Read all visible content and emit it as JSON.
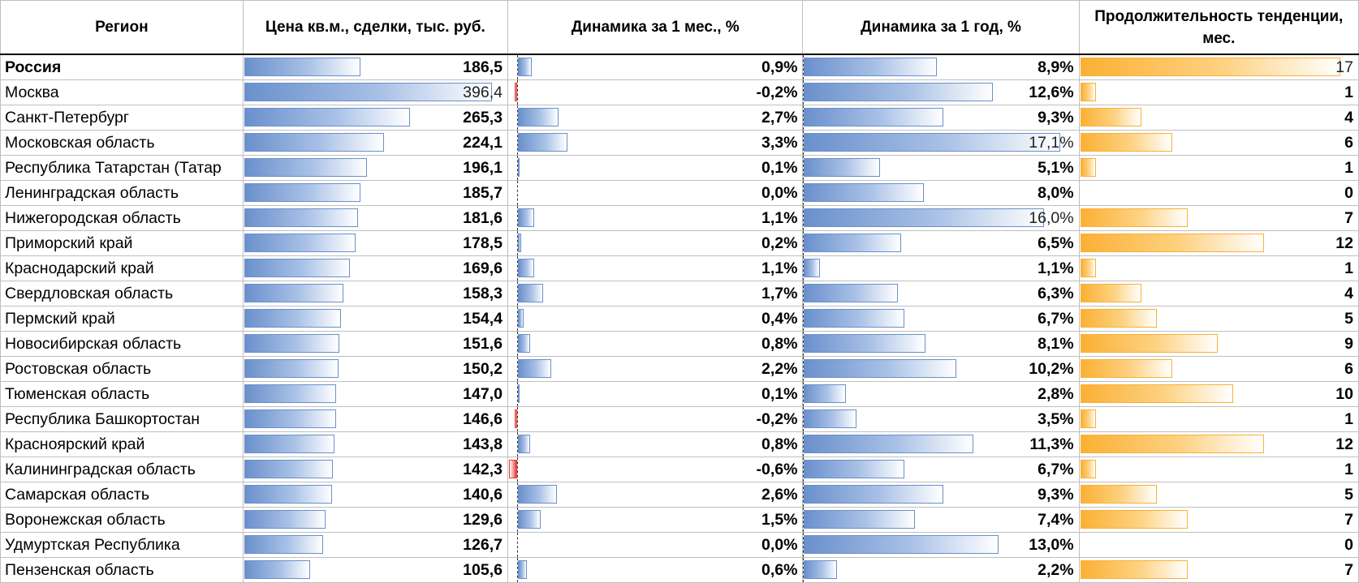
{
  "table": {
    "headers": {
      "region": "Регион",
      "price": "Цена кв.м., сделки, тыс. руб.",
      "month": "Динамика за 1 мес., %",
      "year": "Динамика за 1 год, %",
      "duration": "Продолжительность тенденции, мес."
    },
    "colors": {
      "bar_blue": "#6a90cc",
      "bar_orange": "#fbb034",
      "bar_red": "#e83a3a"
    },
    "rows": [
      {
        "region": "Россия",
        "price": "186,5",
        "month": "0,9%",
        "year": "8,9%",
        "duration": "17",
        "price_v": 186.5,
        "month_v": 0.9,
        "year_v": 8.9,
        "duration_v": 17
      },
      {
        "region": "Москва",
        "price": "396,4",
        "month": "-0,2%",
        "year": "12,6%",
        "duration": "1",
        "price_v": 396.4,
        "month_v": -0.2,
        "year_v": 12.6,
        "duration_v": 1
      },
      {
        "region": "Санкт-Петербург",
        "price": "265,3",
        "month": "2,7%",
        "year": "9,3%",
        "duration": "4",
        "price_v": 265.3,
        "month_v": 2.7,
        "year_v": 9.3,
        "duration_v": 4
      },
      {
        "region": "Московская область",
        "price": "224,1",
        "month": "3,3%",
        "year": "17,1%",
        "duration": "6",
        "price_v": 224.1,
        "month_v": 3.3,
        "year_v": 17.1,
        "duration_v": 6
      },
      {
        "region": "Республика Татарстан (Татар",
        "price": "196,1",
        "month": "0,1%",
        "year": "5,1%",
        "duration": "1",
        "price_v": 196.1,
        "month_v": 0.1,
        "year_v": 5.1,
        "duration_v": 1
      },
      {
        "region": "Ленинградская область",
        "price": "185,7",
        "month": "0,0%",
        "year": "8,0%",
        "duration": "0",
        "price_v": 185.7,
        "month_v": 0.0,
        "year_v": 8.0,
        "duration_v": 0
      },
      {
        "region": "Нижегородская область",
        "price": "181,6",
        "month": "1,1%",
        "year": "16,0%",
        "duration": "7",
        "price_v": 181.6,
        "month_v": 1.1,
        "year_v": 16.0,
        "duration_v": 7
      },
      {
        "region": "Приморский край",
        "price": "178,5",
        "month": "0,2%",
        "year": "6,5%",
        "duration": "12",
        "price_v": 178.5,
        "month_v": 0.2,
        "year_v": 6.5,
        "duration_v": 12
      },
      {
        "region": "Краснодарский край",
        "price": "169,6",
        "month": "1,1%",
        "year": "1,1%",
        "duration": "1",
        "price_v": 169.6,
        "month_v": 1.1,
        "year_v": 1.1,
        "duration_v": 1
      },
      {
        "region": "Свердловская область",
        "price": "158,3",
        "month": "1,7%",
        "year": "6,3%",
        "duration": "4",
        "price_v": 158.3,
        "month_v": 1.7,
        "year_v": 6.3,
        "duration_v": 4
      },
      {
        "region": "Пермский край",
        "price": "154,4",
        "month": "0,4%",
        "year": "6,7%",
        "duration": "5",
        "price_v": 154.4,
        "month_v": 0.4,
        "year_v": 6.7,
        "duration_v": 5
      },
      {
        "region": "Новосибирская область",
        "price": "151,6",
        "month": "0,8%",
        "year": "8,1%",
        "duration": "9",
        "price_v": 151.6,
        "month_v": 0.8,
        "year_v": 8.1,
        "duration_v": 9
      },
      {
        "region": "Ростовская область",
        "price": "150,2",
        "month": "2,2%",
        "year": "10,2%",
        "duration": "6",
        "price_v": 150.2,
        "month_v": 2.2,
        "year_v": 10.2,
        "duration_v": 6
      },
      {
        "region": "Тюменская область",
        "price": "147,0",
        "month": "0,1%",
        "year": "2,8%",
        "duration": "10",
        "price_v": 147.0,
        "month_v": 0.1,
        "year_v": 2.8,
        "duration_v": 10
      },
      {
        "region": "Республика Башкортостан",
        "price": "146,6",
        "month": "-0,2%",
        "year": "3,5%",
        "duration": "1",
        "price_v": 146.6,
        "month_v": -0.2,
        "year_v": 3.5,
        "duration_v": 1
      },
      {
        "region": "Красноярский край",
        "price": "143,8",
        "month": "0,8%",
        "year": "11,3%",
        "duration": "12",
        "price_v": 143.8,
        "month_v": 0.8,
        "year_v": 11.3,
        "duration_v": 12
      },
      {
        "region": "Калининградская область",
        "price": "142,3",
        "month": "-0,6%",
        "year": "6,7%",
        "duration": "1",
        "price_v": 142.3,
        "month_v": -0.6,
        "year_v": 6.7,
        "duration_v": 1
      },
      {
        "region": "Самарская область",
        "price": "140,6",
        "month": "2,6%",
        "year": "9,3%",
        "duration": "5",
        "price_v": 140.6,
        "month_v": 2.6,
        "year_v": 9.3,
        "duration_v": 5
      },
      {
        "region": "Воронежская область",
        "price": "129,6",
        "month": "1,5%",
        "year": "7,4%",
        "duration": "7",
        "price_v": 129.6,
        "month_v": 1.5,
        "year_v": 7.4,
        "duration_v": 7
      },
      {
        "region": "Удмуртская Республика",
        "price": "126,7",
        "month": "0,0%",
        "year": "13,0%",
        "duration": "0",
        "price_v": 126.7,
        "month_v": 0.0,
        "year_v": 13.0,
        "duration_v": 0
      },
      {
        "region": "Пензенская область",
        "price": "105,6",
        "month": "0,6%",
        "year": "2,2%",
        "duration": "7",
        "price_v": 105.6,
        "month_v": 0.6,
        "year_v": 2.2,
        "duration_v": 7
      }
    ]
  }
}
